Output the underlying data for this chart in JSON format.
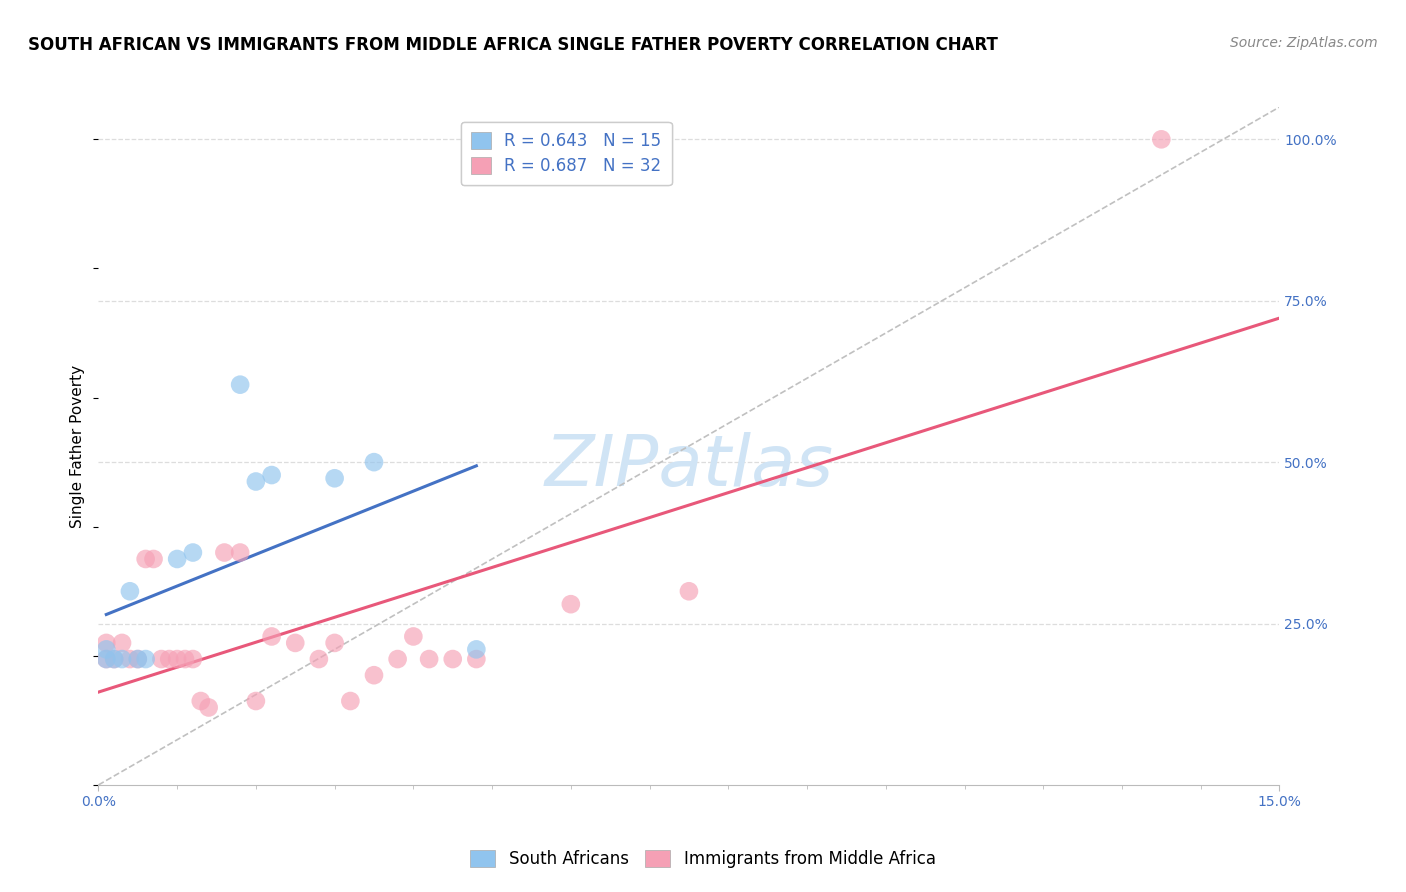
{
  "title": "SOUTH AFRICAN VS IMMIGRANTS FROM MIDDLE AFRICA SINGLE FATHER POVERTY CORRELATION CHART",
  "source": "Source: ZipAtlas.com",
  "ylabel": "Single Father Poverty",
  "x_min": 0.0,
  "x_max": 0.15,
  "y_min": 0.0,
  "y_max": 1.05,
  "x_tick_labels": [
    "0.0%",
    "15.0%"
  ],
  "y_ticks": [
    0.25,
    0.5,
    0.75,
    1.0
  ],
  "y_tick_labels": [
    "25.0%",
    "50.0%",
    "75.0%",
    "100.0%"
  ],
  "watermark": "ZIPatlas",
  "series1_label": "South Africans",
  "series1_color": "#90C4EE",
  "series1_R": "0.643",
  "series1_N": "15",
  "series2_label": "Immigrants from Middle Africa",
  "series2_color": "#F5A0B5",
  "series2_R": "0.687",
  "series2_N": "32",
  "series1_x": [
    0.001,
    0.001,
    0.002,
    0.003,
    0.004,
    0.005,
    0.006,
    0.01,
    0.012,
    0.018,
    0.02,
    0.022,
    0.03,
    0.035,
    0.048
  ],
  "series1_y": [
    0.195,
    0.21,
    0.195,
    0.195,
    0.3,
    0.195,
    0.195,
    0.35,
    0.36,
    0.62,
    0.47,
    0.48,
    0.475,
    0.5,
    0.21
  ],
  "series2_x": [
    0.001,
    0.001,
    0.002,
    0.003,
    0.004,
    0.005,
    0.006,
    0.007,
    0.008,
    0.009,
    0.01,
    0.011,
    0.012,
    0.013,
    0.014,
    0.016,
    0.018,
    0.02,
    0.022,
    0.025,
    0.028,
    0.03,
    0.032,
    0.035,
    0.038,
    0.04,
    0.042,
    0.045,
    0.048,
    0.06,
    0.075,
    0.135
  ],
  "series2_y": [
    0.195,
    0.22,
    0.195,
    0.22,
    0.195,
    0.195,
    0.35,
    0.35,
    0.195,
    0.195,
    0.195,
    0.195,
    0.195,
    0.13,
    0.12,
    0.36,
    0.36,
    0.13,
    0.23,
    0.22,
    0.195,
    0.22,
    0.13,
    0.17,
    0.195,
    0.23,
    0.195,
    0.195,
    0.195,
    0.28,
    0.3,
    1.0
  ],
  "trendline1_color": "#4472C4",
  "trendline2_color": "#E8587A",
  "diagonal_color": "#C0C0C0",
  "background_color": "#FFFFFF",
  "grid_color": "#DDDDDD",
  "title_fontsize": 12,
  "axis_label_fontsize": 11,
  "tick_fontsize": 10,
  "legend_fontsize": 12,
  "source_fontsize": 10,
  "watermark_fontsize": 52,
  "watermark_color": "#D0E4F5",
  "tick_color": "#4472C4",
  "legend_text_color": "#4472C4"
}
